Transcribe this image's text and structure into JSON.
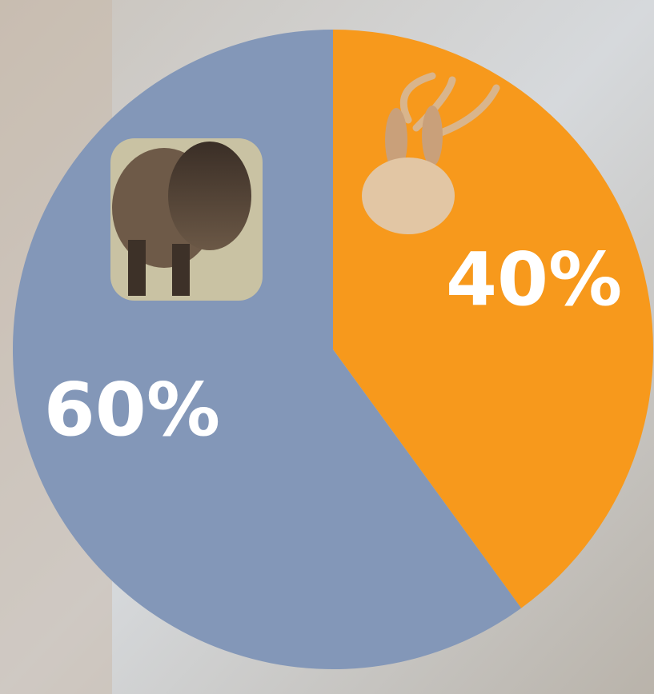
{
  "chart_data": {
    "type": "pie",
    "values": [
      40,
      60
    ],
    "value_labels": [
      "40%",
      "60%"
    ],
    "colors": [
      "#f7991c",
      "#8397b8"
    ]
  }
}
